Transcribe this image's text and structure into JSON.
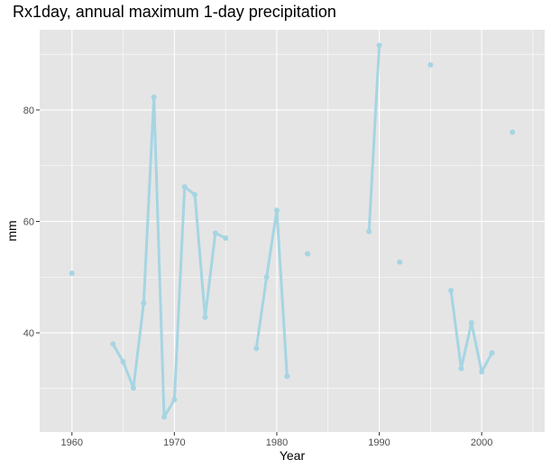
{
  "chart_data": {
    "type": "line",
    "title": "Rx1day, annual maximum 1-day precipitation",
    "xlabel": "Year",
    "ylabel": "mm",
    "xlim": [
      1956.85,
      2006.15
    ],
    "ylim": [
      22.2,
      94.4
    ],
    "x_ticks": [
      1960,
      1970,
      1980,
      1990,
      2000
    ],
    "y_ticks": [
      40,
      60,
      80
    ],
    "grid": true,
    "legend": "none",
    "colors": {
      "series": "#a6d5e3",
      "panel": "#e5e5e5",
      "grid": "#ffffff"
    },
    "series": [
      {
        "points": [
          [
            1960,
            50.7
          ],
          [
            1964,
            38.0
          ],
          [
            1965,
            34.8
          ],
          [
            1966,
            30.1
          ],
          [
            1967,
            45.3
          ],
          [
            1968,
            82.3
          ],
          [
            1969,
            24.9
          ],
          [
            1970,
            28.0
          ],
          [
            1971,
            66.2
          ],
          [
            1972,
            64.8
          ],
          [
            1973,
            42.8
          ],
          [
            1974,
            57.9
          ],
          [
            1975,
            57.0
          ],
          [
            1978,
            37.2
          ],
          [
            1979,
            50.0
          ],
          [
            1980,
            62.0
          ],
          [
            1981,
            32.2
          ],
          [
            1983,
            54.2
          ],
          [
            1989,
            58.2
          ],
          [
            1990,
            91.6
          ],
          [
            1992,
            52.7
          ],
          [
            1995,
            88.1
          ],
          [
            1997,
            47.6
          ],
          [
            1998,
            33.6
          ],
          [
            1999,
            41.8
          ],
          [
            2000,
            33.0
          ],
          [
            2001,
            36.4
          ],
          [
            2003,
            76.0
          ]
        ]
      }
    ]
  }
}
